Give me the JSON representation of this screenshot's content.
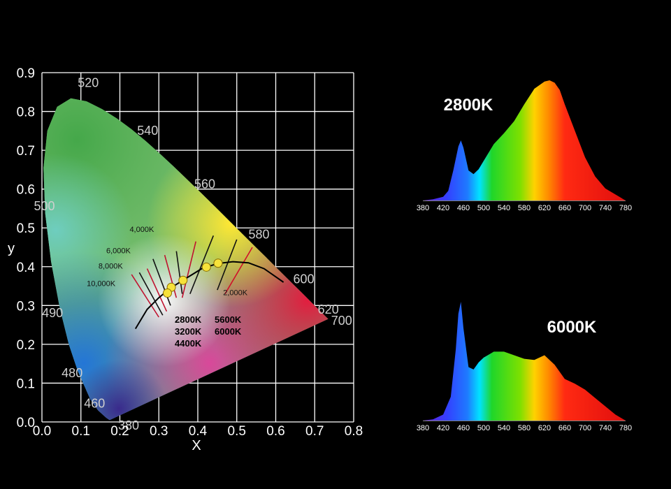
{
  "chart_data": [
    {
      "type": "scatter",
      "subtype": "CIE 1931 chromaticity diagram",
      "xlabel": "X",
      "ylabel": "y",
      "xlim": [
        0.0,
        0.8
      ],
      "ylim": [
        0.0,
        0.9
      ],
      "x_ticks": [
        "0.0",
        "0.1",
        "0.2",
        "0.3",
        "0.4",
        "0.5",
        "0.6",
        "0.7",
        "0.8"
      ],
      "y_ticks": [
        "0.0",
        "0.1",
        "0.2",
        "0.3",
        "0.4",
        "0.5",
        "0.6",
        "0.7",
        "0.8",
        "0.9"
      ],
      "grid": true,
      "wavelength_labels": [
        {
          "label": "460",
          "x": 0.144,
          "y": 0.03
        },
        {
          "label": "480",
          "x": 0.09,
          "y": 0.13
        },
        {
          "label": "490",
          "x": 0.045,
          "y": 0.295
        },
        {
          "label": "500",
          "x": 0.008,
          "y": 0.538
        },
        {
          "label": "520",
          "x": 0.074,
          "y": 0.834
        },
        {
          "label": "540",
          "x": 0.23,
          "y": 0.754
        },
        {
          "label": "560",
          "x": 0.373,
          "y": 0.624
        },
        {
          "label": "580",
          "x": 0.512,
          "y": 0.487
        },
        {
          "label": "600",
          "x": 0.627,
          "y": 0.372
        },
        {
          "label": "620",
          "x": 0.69,
          "y": 0.308
        },
        {
          "label": "700",
          "x": 0.735,
          "y": 0.265
        },
        {
          "label": "380",
          "x": 0.174,
          "y": 0.005
        }
      ],
      "isotherm_labels": [
        "10,000K",
        "8,000K",
        "6,000K",
        "4,000K",
        "2,000K"
      ],
      "legend_labels": [
        "2800K",
        "5600K",
        "3200K",
        "6000K",
        "4400K"
      ],
      "points": [
        {
          "x": 0.452,
          "y": 0.409
        },
        {
          "x": 0.422,
          "y": 0.399
        },
        {
          "x": 0.362,
          "y": 0.365
        },
        {
          "x": 0.332,
          "y": 0.347
        },
        {
          "x": 0.322,
          "y": 0.332
        }
      ]
    },
    {
      "type": "area",
      "title": "2800K",
      "x_ticks": [
        "380",
        "420",
        "460",
        "500",
        "540",
        "580",
        "620",
        "660",
        "700",
        "740",
        "780"
      ],
      "x": [
        380,
        400,
        420,
        430,
        440,
        450,
        455,
        460,
        470,
        480,
        490,
        500,
        520,
        540,
        560,
        580,
        600,
        620,
        630,
        640,
        650,
        660,
        680,
        700,
        720,
        740,
        760,
        780
      ],
      "values": [
        0.0,
        0.01,
        0.03,
        0.08,
        0.25,
        0.45,
        0.5,
        0.44,
        0.25,
        0.22,
        0.26,
        0.33,
        0.47,
        0.56,
        0.66,
        0.8,
        0.93,
        0.99,
        1.0,
        0.98,
        0.92,
        0.8,
        0.58,
        0.36,
        0.2,
        0.1,
        0.05,
        0.0
      ],
      "colors": {
        "violet": "#6a1fd1",
        "blue": "#1866ff",
        "green": "#1fd62a",
        "yellow": "#ffd200",
        "red": "#ff1a12"
      }
    },
    {
      "type": "area",
      "title": "6000K",
      "x_ticks": [
        "380",
        "420",
        "460",
        "500",
        "540",
        "580",
        "620",
        "660",
        "700",
        "740",
        "780"
      ],
      "x": [
        380,
        400,
        420,
        435,
        445,
        450,
        455,
        460,
        470,
        480,
        490,
        500,
        520,
        540,
        560,
        580,
        600,
        620,
        640,
        660,
        680,
        700,
        720,
        740,
        760,
        780
      ],
      "values": [
        0.0,
        0.01,
        0.05,
        0.2,
        0.6,
        0.9,
        1.0,
        0.78,
        0.45,
        0.43,
        0.49,
        0.53,
        0.58,
        0.58,
        0.55,
        0.52,
        0.51,
        0.55,
        0.47,
        0.35,
        0.31,
        0.26,
        0.19,
        0.12,
        0.05,
        0.0
      ]
    }
  ]
}
